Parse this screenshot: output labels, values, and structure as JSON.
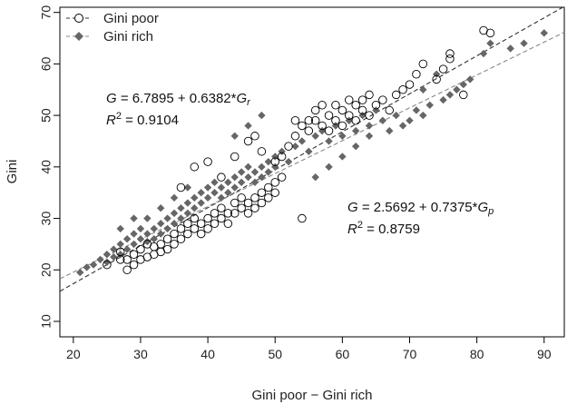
{
  "chart_data": {
    "type": "scatter",
    "title": "",
    "xlabel": "Gini poor − Gini rich",
    "ylabel": "Gini",
    "xlim": [
      18,
      93
    ],
    "ylim": [
      7,
      71
    ],
    "xticks": [
      20,
      30,
      40,
      50,
      60,
      70,
      80,
      90
    ],
    "yticks": [
      10,
      20,
      30,
      40,
      50,
      60,
      70
    ],
    "grid": false,
    "legend_position": "top-left",
    "series": [
      {
        "name": "Gini poor",
        "marker": "open-circle",
        "color": "#000000",
        "fit_line": {
          "intercept": 2.5692,
          "slope": 0.7375,
          "color": "#333333",
          "dash": "dashed"
        },
        "points": [
          [
            25,
            21
          ],
          [
            27,
            22
          ],
          [
            27,
            23.5
          ],
          [
            28,
            20
          ],
          [
            28,
            22
          ],
          [
            29,
            21
          ],
          [
            29,
            23
          ],
          [
            30,
            22
          ],
          [
            30,
            24
          ],
          [
            31,
            22.5
          ],
          [
            31,
            25
          ],
          [
            32,
            23
          ],
          [
            32,
            24.5
          ],
          [
            33,
            25
          ],
          [
            33,
            23.5
          ],
          [
            34,
            24
          ],
          [
            34,
            26
          ],
          [
            35,
            25
          ],
          [
            35,
            27
          ],
          [
            36,
            26
          ],
          [
            36,
            28
          ],
          [
            37,
            27
          ],
          [
            37,
            29
          ],
          [
            38,
            28
          ],
          [
            38,
            30
          ],
          [
            39,
            29
          ],
          [
            39,
            27
          ],
          [
            40,
            30
          ],
          [
            40,
            28
          ],
          [
            41,
            31
          ],
          [
            41,
            29
          ],
          [
            42,
            30
          ],
          [
            42,
            32
          ],
          [
            43,
            31
          ],
          [
            43,
            29
          ],
          [
            44,
            33
          ],
          [
            44,
            31
          ],
          [
            45,
            32
          ],
          [
            45,
            34
          ],
          [
            46,
            33
          ],
          [
            46,
            31
          ],
          [
            47,
            34
          ],
          [
            47,
            32
          ],
          [
            48,
            35
          ],
          [
            48,
            33
          ],
          [
            49,
            36
          ],
          [
            49,
            34
          ],
          [
            50,
            37
          ],
          [
            50,
            35
          ],
          [
            51,
            38
          ],
          [
            36,
            36
          ],
          [
            38,
            40
          ],
          [
            40,
            41
          ],
          [
            42,
            38
          ],
          [
            44,
            42
          ],
          [
            46,
            45
          ],
          [
            47,
            46
          ],
          [
            48,
            43
          ],
          [
            50,
            41
          ],
          [
            51,
            42
          ],
          [
            52,
            44
          ],
          [
            53,
            46
          ],
          [
            53,
            49
          ],
          [
            54,
            48
          ],
          [
            54,
            30
          ],
          [
            55,
            49
          ],
          [
            55,
            47
          ],
          [
            56,
            51
          ],
          [
            56,
            49
          ],
          [
            57,
            48
          ],
          [
            57,
            52
          ],
          [
            58,
            50
          ],
          [
            58,
            47
          ],
          [
            59,
            49
          ],
          [
            59,
            52
          ],
          [
            60,
            51
          ],
          [
            60,
            48
          ],
          [
            61,
            50
          ],
          [
            61,
            53
          ],
          [
            62,
            52
          ],
          [
            62,
            49
          ],
          [
            63,
            53
          ],
          [
            63,
            51
          ],
          [
            64,
            54
          ],
          [
            64,
            50
          ],
          [
            65,
            52
          ],
          [
            66,
            53
          ],
          [
            67,
            51
          ],
          [
            68,
            54
          ],
          [
            69,
            55
          ],
          [
            70,
            56
          ],
          [
            71,
            58
          ],
          [
            72,
            60
          ],
          [
            76,
            62
          ],
          [
            76,
            61
          ],
          [
            81,
            66.5
          ],
          [
            82,
            66
          ],
          [
            78,
            54
          ],
          [
            75,
            59
          ],
          [
            74,
            57
          ]
        ]
      },
      {
        "name": "Gini rich",
        "marker": "filled-diamond",
        "color": "#666666",
        "fit_line": {
          "intercept": 6.7895,
          "slope": 0.6382,
          "color": "#888888",
          "dash": "dashed"
        },
        "points": [
          [
            21,
            19.5
          ],
          [
            22,
            20.5
          ],
          [
            23,
            21
          ],
          [
            24,
            22
          ],
          [
            25,
            21.5
          ],
          [
            25,
            23
          ],
          [
            26,
            22.5
          ],
          [
            26,
            24
          ],
          [
            27,
            23
          ],
          [
            27,
            25
          ],
          [
            28,
            24
          ],
          [
            28,
            26
          ],
          [
            29,
            25
          ],
          [
            29,
            27
          ],
          [
            30,
            26
          ],
          [
            30,
            28
          ],
          [
            31,
            27
          ],
          [
            31,
            25.5
          ],
          [
            32,
            28
          ],
          [
            32,
            26
          ],
          [
            33,
            29
          ],
          [
            33,
            27
          ],
          [
            34,
            30
          ],
          [
            34,
            28
          ],
          [
            35,
            31
          ],
          [
            35,
            29
          ],
          [
            36,
            32
          ],
          [
            36,
            30
          ],
          [
            37,
            33
          ],
          [
            37,
            31
          ],
          [
            38,
            34
          ],
          [
            38,
            32
          ],
          [
            39,
            35
          ],
          [
            39,
            33
          ],
          [
            40,
            36
          ],
          [
            40,
            34
          ],
          [
            41,
            35
          ],
          [
            41,
            37
          ],
          [
            42,
            36
          ],
          [
            42,
            34
          ],
          [
            43,
            37
          ],
          [
            43,
            35
          ],
          [
            44,
            38
          ],
          [
            44,
            36
          ],
          [
            45,
            39
          ],
          [
            45,
            37
          ],
          [
            46,
            38
          ],
          [
            46,
            40
          ],
          [
            47,
            39
          ],
          [
            47,
            37
          ],
          [
            48,
            40
          ],
          [
            48,
            38
          ],
          [
            49,
            41
          ],
          [
            49,
            39
          ],
          [
            50,
            42
          ],
          [
            50,
            40
          ],
          [
            51,
            43
          ],
          [
            52,
            41
          ],
          [
            53,
            44
          ],
          [
            54,
            45
          ],
          [
            55,
            43
          ],
          [
            56,
            46
          ],
          [
            57,
            47
          ],
          [
            58,
            45
          ],
          [
            59,
            48
          ],
          [
            60,
            46
          ],
          [
            61,
            49
          ],
          [
            62,
            47
          ],
          [
            63,
            50
          ],
          [
            64,
            48
          ],
          [
            65,
            51
          ],
          [
            66,
            49
          ],
          [
            67,
            47
          ],
          [
            68,
            50
          ],
          [
            69,
            48
          ],
          [
            70,
            49
          ],
          [
            71,
            51
          ],
          [
            72,
            50
          ],
          [
            73,
            52
          ],
          [
            75,
            53
          ],
          [
            76,
            54
          ],
          [
            77,
            55
          ],
          [
            78,
            56
          ],
          [
            79,
            57
          ],
          [
            81,
            62
          ],
          [
            82,
            64
          ],
          [
            85,
            63
          ],
          [
            87,
            64
          ],
          [
            90,
            66
          ],
          [
            74,
            58
          ],
          [
            72,
            55
          ],
          [
            56,
            38
          ],
          [
            58,
            40
          ],
          [
            60,
            42
          ],
          [
            62,
            44
          ],
          [
            64,
            46
          ],
          [
            35,
            34
          ],
          [
            37,
            36
          ],
          [
            33,
            32
          ],
          [
            31,
            30
          ],
          [
            29,
            30
          ],
          [
            27,
            28
          ],
          [
            44,
            46
          ],
          [
            46,
            48
          ],
          [
            48,
            50
          ]
        ]
      }
    ],
    "annotations": [
      {
        "line1": "G = 6.7895 + 0.6382*Gr",
        "line2": "R2 = 0.9104"
      },
      {
        "line1": "G = 2.5692 + 0.7375*Gp",
        "line2": "R2 = 0.8759"
      }
    ]
  },
  "legend": {
    "items": [
      {
        "label": "Gini poor"
      },
      {
        "label": "Gini rich"
      }
    ]
  },
  "equations": {
    "rich": {
      "g": "G",
      "equals": " = ",
      "expr": "6.7895 + 0.6382*",
      "var": "G",
      "sub": "r",
      "r": "R",
      "sup": "2",
      "rvalue": " = 0.9104"
    },
    "poor": {
      "g": "G",
      "equals": " = ",
      "expr": "2.5692 + 0.7375*",
      "var": "G",
      "sub": "p",
      "r": "R",
      "sup": "2",
      "rvalue": " = 0.8759"
    }
  }
}
